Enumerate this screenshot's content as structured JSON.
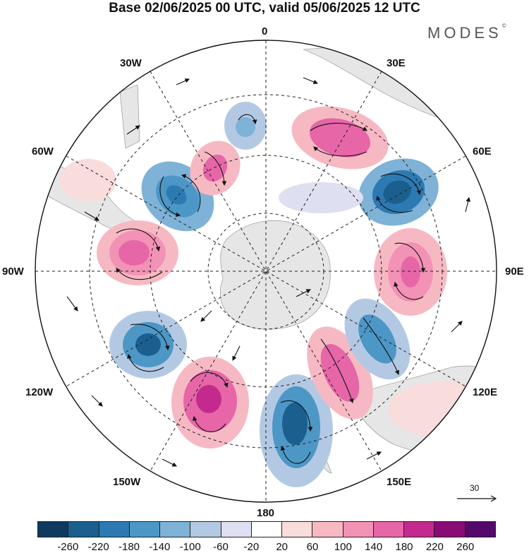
{
  "title": "Base 02/06/2025 00 UTC, valid 05/06/2025 12 UTC",
  "logo": "MODES",
  "logo_mark": "©",
  "map": {
    "projection": "south-polar-stereographic",
    "longitude_labels": {
      "0": "0",
      "30E": "30E",
      "60E": "60E",
      "90E": "90E",
      "120E": "120E",
      "150E": "150E",
      "180": "180",
      "150W": "150W",
      "120W": "120W",
      "90W": "90W",
      "60W": "60W",
      "30W": "30W"
    },
    "vector_reference": "30"
  },
  "colorbar": {
    "colors": [
      "#0d3a5e",
      "#1a5f8e",
      "#2d7ab3",
      "#4d97c6",
      "#7eb2d6",
      "#b3c9e3",
      "#dedff0",
      "#ffffff",
      "#f9dcdc",
      "#f6b9c3",
      "#f292b4",
      "#e666a8",
      "#c42a8e",
      "#8b0b76",
      "#550a6b"
    ],
    "tick_labels": [
      "-260",
      "-220",
      "-180",
      "-140",
      "-100",
      "-60",
      "-20",
      "20",
      "60",
      "100",
      "140",
      "180",
      "220",
      "260"
    ]
  }
}
